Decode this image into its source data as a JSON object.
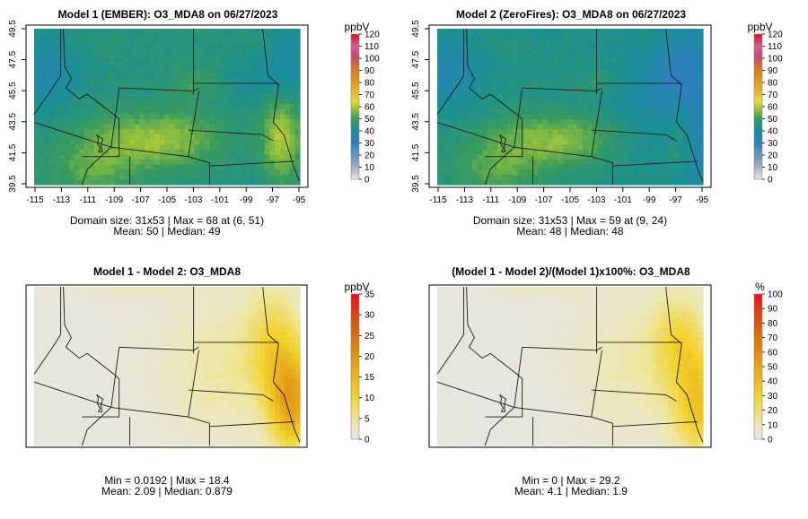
{
  "figure": {
    "panels": [
      {
        "title": "Model 1 (EMBER): O3_MDA8 on 06/27/2023",
        "stats_line1": "Domain size: 31x53 | Max = 68 at (6, 51)",
        "stats_line2": "Mean: 50 |  Median: 49"
      },
      {
        "title": "Model 2 (ZeroFires): O3_MDA8 on 06/27/2023",
        "stats_line1": "Domain size: 31x53 | Max = 59 at (9, 24)",
        "stats_line2": "Mean: 48 |  Median: 48"
      },
      {
        "title": "Model 1 - Model 2: O3_MDA8",
        "stats_line1": "Min = 0.0192 | Max = 18.4",
        "stats_line2": "Mean: 2.09 |  Median: 0.879"
      },
      {
        "title": "(Model 1 - Model 2)/(Model 1)x100%: O3_MDA8",
        "stats_line1": "Min = 0 | Max = 29.2",
        "stats_line2": "Mean: 4.1 |  Median: 1.9"
      }
    ]
  },
  "chart_data": [
    {
      "type": "heatmap",
      "title": "Model 1 (EMBER): O3_MDA8 on 06/27/2023",
      "x_ticks": [
        "-115",
        "-113",
        "-111",
        "-109",
        "-107",
        "-105",
        "-103",
        "-101",
        "-99",
        "-97",
        "-95"
      ],
      "y_ticks": [
        "39.5",
        "41.5",
        "43.5",
        "45.5",
        "47.5",
        "49.5"
      ],
      "xlim": [
        -115,
        -95
      ],
      "ylim": [
        39.5,
        49.5
      ],
      "colorbar": {
        "unit": "ppbV",
        "ticks": [
          "0",
          "10",
          "20",
          "30",
          "40",
          "50",
          "60",
          "70",
          "80",
          "90",
          "100",
          "110",
          "120"
        ],
        "range": [
          0,
          120
        ]
      },
      "grid_size": "31x53",
      "max": 68,
      "max_at": "(6, 51)",
      "mean": 50,
      "median": 49
    },
    {
      "type": "heatmap",
      "title": "Model 2 (ZeroFires): O3_MDA8 on 06/27/2023",
      "x_ticks": [
        "-115",
        "-113",
        "-111",
        "-109",
        "-107",
        "-105",
        "-103",
        "-101",
        "-99",
        "-97",
        "-95"
      ],
      "y_ticks": [
        "39.5",
        "41.5",
        "43.5",
        "45.5",
        "47.5",
        "49.5"
      ],
      "xlim": [
        -115,
        -95
      ],
      "ylim": [
        39.5,
        49.5
      ],
      "colorbar": {
        "unit": "ppbV",
        "ticks": [
          "0",
          "10",
          "20",
          "30",
          "40",
          "50",
          "60",
          "70",
          "80",
          "90",
          "100",
          "110",
          "120"
        ],
        "range": [
          0,
          120
        ]
      },
      "grid_size": "31x53",
      "max": 59,
      "max_at": "(9, 24)",
      "mean": 48,
      "median": 48
    },
    {
      "type": "heatmap",
      "title": "Model 1 - Model 2: O3_MDA8",
      "colorbar": {
        "unit": "ppbV",
        "ticks": [
          "0",
          "5",
          "10",
          "15",
          "20",
          "25",
          "30",
          "35"
        ],
        "range": [
          0,
          35
        ]
      },
      "min": 0.0192,
      "max": 18.4,
      "mean": 2.09,
      "median": 0.879
    },
    {
      "type": "heatmap",
      "title": "(Model 1 - Model 2)/(Model 1)x100%: O3_MDA8",
      "colorbar": {
        "unit": "%",
        "ticks": [
          "0",
          "10",
          "20",
          "30",
          "40",
          "50",
          "60",
          "70",
          "80",
          "90",
          "100"
        ],
        "range": [
          0,
          100
        ]
      },
      "min": 0,
      "max": 29.2,
      "mean": 4.1,
      "median": 1.9
    }
  ]
}
